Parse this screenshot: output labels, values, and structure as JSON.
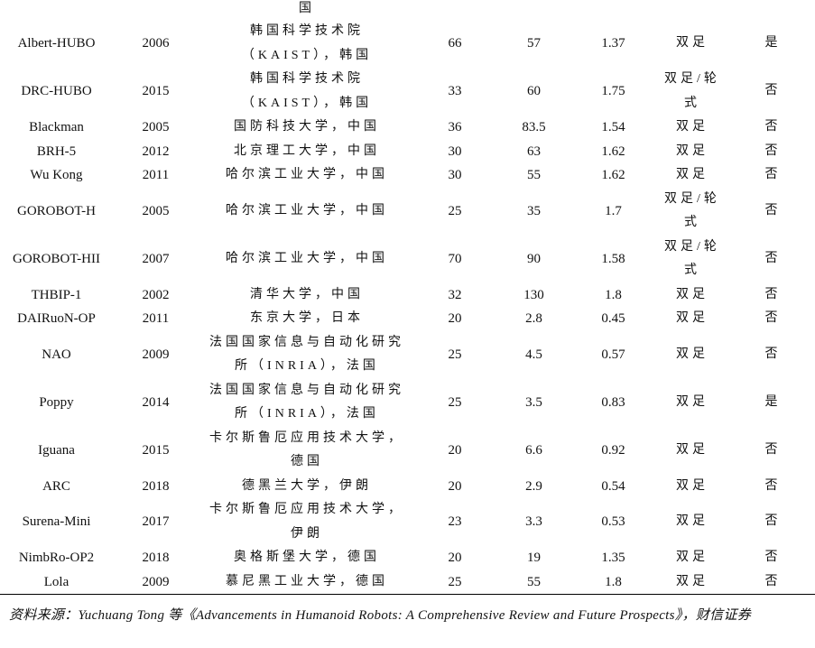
{
  "table": {
    "top_fragment": "国",
    "rows": [
      [
        "Albert-HUBO",
        "2006",
        "韩国科学技术院（KAIST），韩国",
        "66",
        "57",
        "1.37",
        "双足",
        "是"
      ],
      [
        "DRC-HUBO",
        "2015",
        "韩国科学技术院（KAIST），韩国",
        "33",
        "60",
        "1.75",
        "双足/轮式",
        "否"
      ],
      [
        "Blackman",
        "2005",
        "国防科技大学，中国",
        "36",
        "83.5",
        "1.54",
        "双足",
        "否"
      ],
      [
        "BRH-5",
        "2012",
        "北京理工大学，中国",
        "30",
        "63",
        "1.62",
        "双足",
        "否"
      ],
      [
        "Wu Kong",
        "2011",
        "哈尔滨工业大学，中国",
        "30",
        "55",
        "1.62",
        "双足",
        "否"
      ],
      [
        "GOROBOT-H",
        "2005",
        "哈尔滨工业大学，中国",
        "25",
        "35",
        "1.7",
        "双足/轮式",
        "否"
      ],
      [
        "GOROBOT-HII",
        "2007",
        "哈尔滨工业大学，中国",
        "70",
        "90",
        "1.58",
        "双足/轮式",
        "否"
      ],
      [
        "THBIP-1",
        "2002",
        "清华大学，中国",
        "32",
        "130",
        "1.8",
        "双足",
        "否"
      ],
      [
        "DAIRuoN-OP",
        "2011",
        "东京大学，日本",
        "20",
        "2.8",
        "0.45",
        "双足",
        "否"
      ],
      [
        "NAO",
        "2009",
        "法国国家信息与自动化研究所（INRIA），法国",
        "25",
        "4.5",
        "0.57",
        "双足",
        "否"
      ],
      [
        "Poppy",
        "2014",
        "法国国家信息与自动化研究所（INRIA），法国",
        "25",
        "3.5",
        "0.83",
        "双足",
        "是"
      ],
      [
        "Iguana",
        "2015",
        "卡尔斯鲁厄应用技术大学，德国",
        "20",
        "6.6",
        "0.92",
        "双足",
        "否"
      ],
      [
        "ARC",
        "2018",
        "德黑兰大学，伊朗",
        "20",
        "2.9",
        "0.54",
        "双足",
        "否"
      ],
      [
        "Surena-Mini",
        "2017",
        "卡尔斯鲁厄应用技术大学，伊朗",
        "23",
        "3.3",
        "0.53",
        "双足",
        "否"
      ],
      [
        "NimbRo-OP2",
        "2018",
        "奥格斯堡大学，德国",
        "20",
        "19",
        "1.35",
        "双足",
        "否"
      ],
      [
        "Lola",
        "2009",
        "慕尼黑工业大学，德国",
        "25",
        "55",
        "1.8",
        "双足",
        "否"
      ]
    ]
  },
  "footer": "资料来源：Yuchuang Tong 等《Advancements in Humanoid Robots: A Comprehensive Review and Future Prospects》，财信证券"
}
